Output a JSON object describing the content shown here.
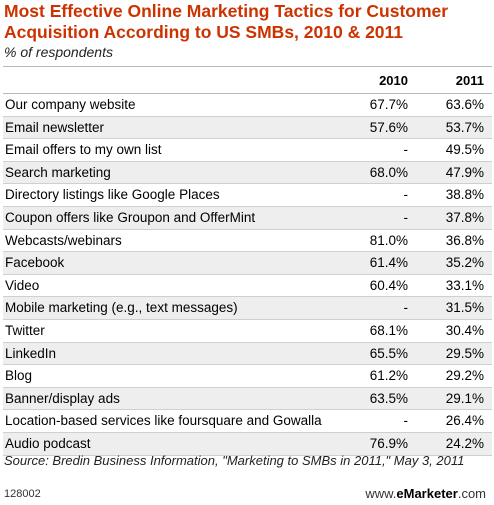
{
  "chart_data": {
    "type": "table",
    "title": "Most Effective Online Marketing Tactics for Customer Acquisition According to US SMBs, 2010 & 2011",
    "subtitle": "% of respondents",
    "columns": [
      "2010",
      "2011"
    ],
    "rows": [
      {
        "label": "Our company website",
        "v2010": "67.7%",
        "v2011": "63.6%"
      },
      {
        "label": "Email newsletter",
        "v2010": "57.6%",
        "v2011": "53.7%"
      },
      {
        "label": "Email offers to my own list",
        "v2010": "-",
        "v2011": "49.5%"
      },
      {
        "label": "Search marketing",
        "v2010": "68.0%",
        "v2011": "47.9%"
      },
      {
        "label": "Directory listings like Google Places",
        "v2010": "-",
        "v2011": "38.8%"
      },
      {
        "label": "Coupon offers like Groupon and OfferMint",
        "v2010": "-",
        "v2011": "37.8%"
      },
      {
        "label": "Webcasts/webinars",
        "v2010": "81.0%",
        "v2011": "36.8%"
      },
      {
        "label": "Facebook",
        "v2010": "61.4%",
        "v2011": "35.2%"
      },
      {
        "label": "Video",
        "v2010": "60.4%",
        "v2011": "33.1%"
      },
      {
        "label": "Mobile marketing (e.g., text messages)",
        "v2010": "-",
        "v2011": "31.5%"
      },
      {
        "label": "Twitter",
        "v2010": "68.1%",
        "v2011": "30.4%"
      },
      {
        "label": "LinkedIn",
        "v2010": "65.5%",
        "v2011": "29.5%"
      },
      {
        "label": "Blog",
        "v2010": "61.2%",
        "v2011": "29.2%"
      },
      {
        "label": "Banner/display ads",
        "v2010": "63.5%",
        "v2011": "29.1%"
      },
      {
        "label": "Location-based services like foursquare and Gowalla",
        "v2010": "-",
        "v2011": "26.4%"
      },
      {
        "label": "Audio podcast",
        "v2010": "76.9%",
        "v2011": "24.2%"
      }
    ],
    "source": "Source: Bredin Business Information, \"Marketing to SMBs in 2011,\" May 3, 2011",
    "chart_id": "128002",
    "brand_prefix": "www.",
    "brand_name": "eMarketer",
    "brand_suffix": ".com"
  },
  "colors": {
    "title": "#cc3300",
    "row_alt": "#eeeeee",
    "rule": "#cfcfcf"
  }
}
